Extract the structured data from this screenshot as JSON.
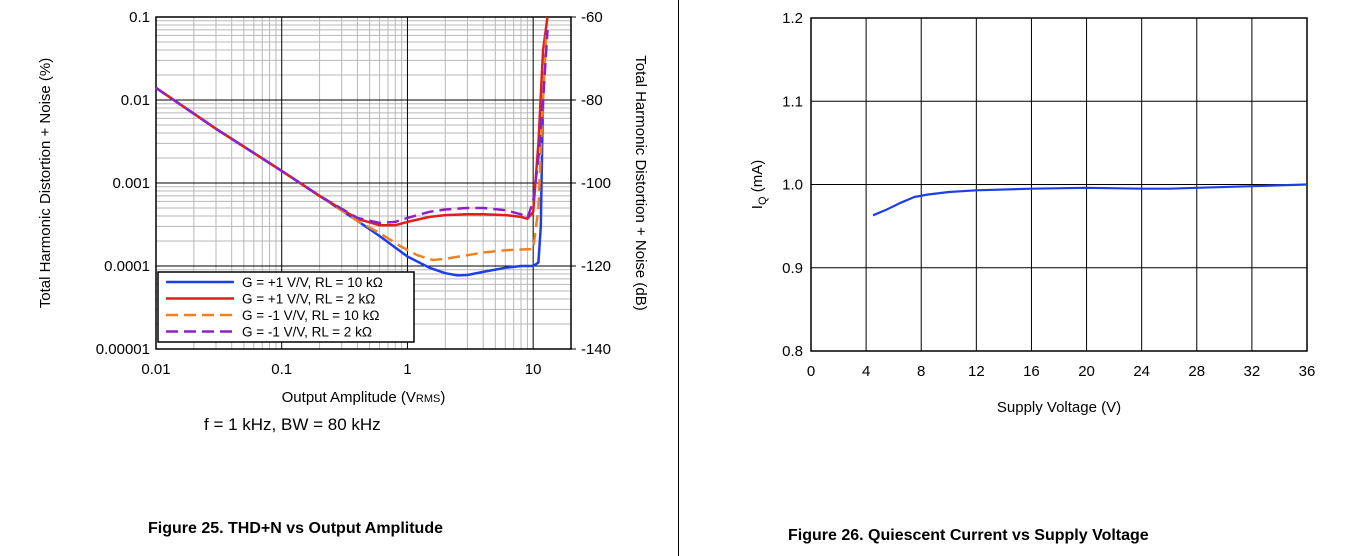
{
  "chart_data": [
    {
      "type": "line",
      "figure_caption": "Figure 25. THD+N vs Output Amplitude",
      "note": "f = 1 kHz, BW = 80 kHz",
      "xlabel": "Output Amplitude (VRMS)",
      "xlabel_main": "Output Amplitude (V",
      "xlabel_sub": "RMS",
      "xlabel_close": ")",
      "ylabel": "Total Harmonic Distortion + Noise (%)",
      "y2label": "Total Harmonic Distortion + Noise (dB)",
      "xscale": "log",
      "yscale": "log",
      "xlim": [
        0.01,
        20
      ],
      "ylim": [
        1e-05,
        0.1
      ],
      "y2lim": [
        -140,
        -60
      ],
      "x_ticks": [
        "0.01",
        "0.1",
        "1",
        "10"
      ],
      "y_ticks": [
        "0.00001",
        "0.0001",
        "0.001",
        "0.01",
        "0.1"
      ],
      "y2_ticks": [
        "-140",
        "-120",
        "-100",
        "-80",
        "-60"
      ],
      "grid": true,
      "legend_position": "bottom-left",
      "series": [
        {
          "name": "G = +1 V/V, RL = 10 kΩ",
          "color": "#1f3fe6",
          "dash": "solid",
          "x": [
            0.01,
            0.03,
            0.1,
            0.2,
            0.4,
            0.6,
            1.0,
            1.5,
            2.0,
            2.5,
            3.0,
            4.0,
            6.0,
            8.0,
            10.0,
            11.0,
            11.5,
            11.8,
            12.0
          ],
          "y": [
            0.014,
            0.0045,
            0.0014,
            0.0007,
            0.00035,
            0.00023,
            0.00013,
            9.5e-05,
            8.2e-05,
            7.7e-05,
            7.8e-05,
            8.5e-05,
            9.5e-05,
            0.0001,
            0.0001,
            0.00011,
            0.0003,
            0.003,
            0.01
          ]
        },
        {
          "name": "G = +1 V/V, RL = 2 kΩ",
          "color": "#e01e1e",
          "dash": "solid",
          "x": [
            0.01,
            0.03,
            0.1,
            0.2,
            0.4,
            0.6,
            0.8,
            1.0,
            1.5,
            2.0,
            3.0,
            4.0,
            6.0,
            8.0,
            9.0,
            10.0,
            11.0,
            12.0,
            13.0
          ],
          "y": [
            0.014,
            0.0045,
            0.0014,
            0.0007,
            0.00037,
            0.00031,
            0.00031,
            0.00034,
            0.00039,
            0.00041,
            0.00042,
            0.00042,
            0.00041,
            0.00039,
            0.00037,
            0.00045,
            0.003,
            0.04,
            0.1
          ]
        },
        {
          "name": "G = -1 V/V, RL = 10 kΩ",
          "color": "#f08020",
          "dash": "dashed",
          "x": [
            0.01,
            0.03,
            0.1,
            0.2,
            0.4,
            0.6,
            0.9,
            1.2,
            1.6,
            2.0,
            3.0,
            4.0,
            6.0,
            8.0,
            10.0,
            11.0,
            12.0,
            12.7
          ],
          "y": [
            0.014,
            0.0045,
            0.0014,
            0.0007,
            0.00035,
            0.00025,
            0.00017,
            0.000135,
            0.000118,
            0.000122,
            0.000135,
            0.000145,
            0.000155,
            0.000158,
            0.00016,
            0.0005,
            0.01,
            0.06
          ]
        },
        {
          "name": "G = -1 V/V, RL = 2 kΩ",
          "color": "#8a22c8",
          "dash": "dashed",
          "x": [
            0.01,
            0.03,
            0.1,
            0.2,
            0.4,
            0.6,
            0.8,
            1.0,
            1.5,
            2.0,
            3.0,
            4.0,
            6.0,
            8.0,
            9.0,
            10.0,
            11.0,
            12.0,
            13.0
          ],
          "y": [
            0.014,
            0.0045,
            0.0014,
            0.0007,
            0.00038,
            0.00033,
            0.00034,
            0.00038,
            0.00045,
            0.00048,
            0.0005,
            0.0005,
            0.00047,
            0.00042,
            0.00038,
            0.0006,
            0.002,
            0.01,
            0.07
          ]
        }
      ]
    },
    {
      "type": "line",
      "figure_caption": "Figure 26. Quiescent Current vs Supply Voltage",
      "xlabel": "Supply Voltage (V)",
      "ylabel": "IQ (mA)",
      "ylabel_main": "I",
      "ylabel_sub": "Q",
      "ylabel_rest": " (mA)",
      "xlim": [
        0,
        36
      ],
      "ylim": [
        0.8,
        1.2
      ],
      "x_ticks": [
        "0",
        "4",
        "8",
        "12",
        "16",
        "20",
        "24",
        "28",
        "32",
        "36"
      ],
      "y_ticks": [
        "0.8",
        "0.9",
        "1.0",
        "1.1",
        "1.2"
      ],
      "grid": true,
      "series": [
        {
          "color": "#1f3fe6",
          "x": [
            4.5,
            5.5,
            6.5,
            7.5,
            8.5,
            10,
            12,
            16,
            20,
            24,
            26,
            28,
            32,
            36
          ],
          "y": [
            0.963,
            0.97,
            0.978,
            0.985,
            0.988,
            0.991,
            0.993,
            0.995,
            0.996,
            0.995,
            0.995,
            0.996,
            0.998,
            1.0
          ]
        }
      ]
    }
  ]
}
